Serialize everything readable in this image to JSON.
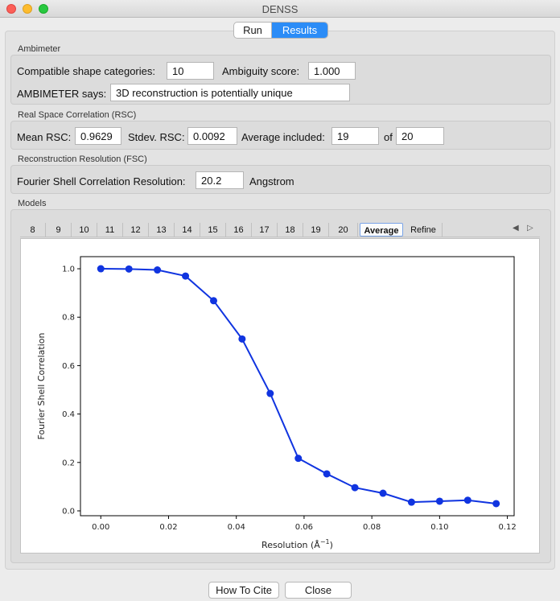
{
  "window": {
    "title": "DENSS"
  },
  "tabs": {
    "run": "Run",
    "results": "Results",
    "selected": "Results"
  },
  "ambimeter": {
    "section": "Ambimeter",
    "categories_label": "Compatible shape categories:",
    "categories_value": "10",
    "score_label": "Ambiguity score:",
    "score_value": "1.000",
    "says_label": "AMBIMETER says:",
    "says_value": "3D reconstruction is potentially unique"
  },
  "rsc": {
    "section": "Real Space Correlation (RSC)",
    "mean_label": "Mean RSC:",
    "mean_value": "0.9629",
    "stdev_label": "Stdev. RSC:",
    "stdev_value": "0.0092",
    "avg_label": "Average included:",
    "avg_value": "19",
    "of_label": "of",
    "of_value": "20"
  },
  "fsc": {
    "section": "Reconstruction Resolution (FSC)",
    "label": "Fourier Shell Correlation Resolution:",
    "value": "20.2",
    "unit": "Angstrom"
  },
  "models": {
    "section": "Models",
    "tabs": [
      "8",
      "9",
      "10",
      "11",
      "12",
      "13",
      "14",
      "15",
      "16",
      "17",
      "18",
      "19",
      "20",
      "Average",
      "Refine"
    ],
    "active_tab": "Average"
  },
  "chart_data": {
    "type": "line",
    "title": "",
    "xlabel": "Resolution (Å",
    "xlabel_sup": "−1",
    "xlabel_end": ")",
    "ylabel": "Fourier Shell Correlation",
    "xlim": [
      -0.006,
      0.122
    ],
    "ylim": [
      -0.02,
      1.05
    ],
    "xticks": [
      "0.00",
      "0.02",
      "0.04",
      "0.06",
      "0.08",
      "0.10",
      "0.12"
    ],
    "xtick_values": [
      0.0,
      0.02,
      0.04,
      0.06,
      0.08,
      0.1,
      0.12
    ],
    "yticks": [
      "0.0",
      "0.2",
      "0.4",
      "0.6",
      "0.8",
      "1.0"
    ],
    "ytick_values": [
      0.0,
      0.2,
      0.4,
      0.6,
      0.8,
      1.0
    ],
    "x": [
      0.0,
      0.0083,
      0.0167,
      0.025,
      0.0333,
      0.0417,
      0.05,
      0.0583,
      0.0667,
      0.075,
      0.0833,
      0.0917,
      0.1,
      0.1083,
      0.1167
    ],
    "y": [
      1.0,
      0.999,
      0.995,
      0.97,
      0.868,
      0.71,
      0.485,
      0.217,
      0.153,
      0.096,
      0.073,
      0.036,
      0.04,
      0.044,
      0.03
    ],
    "color": "#1034e0",
    "grid": false
  },
  "buttons": {
    "cite": "How To Cite",
    "close": "Close"
  },
  "colors": {
    "accent": "#2b8cf7",
    "series": "#1034e0"
  }
}
